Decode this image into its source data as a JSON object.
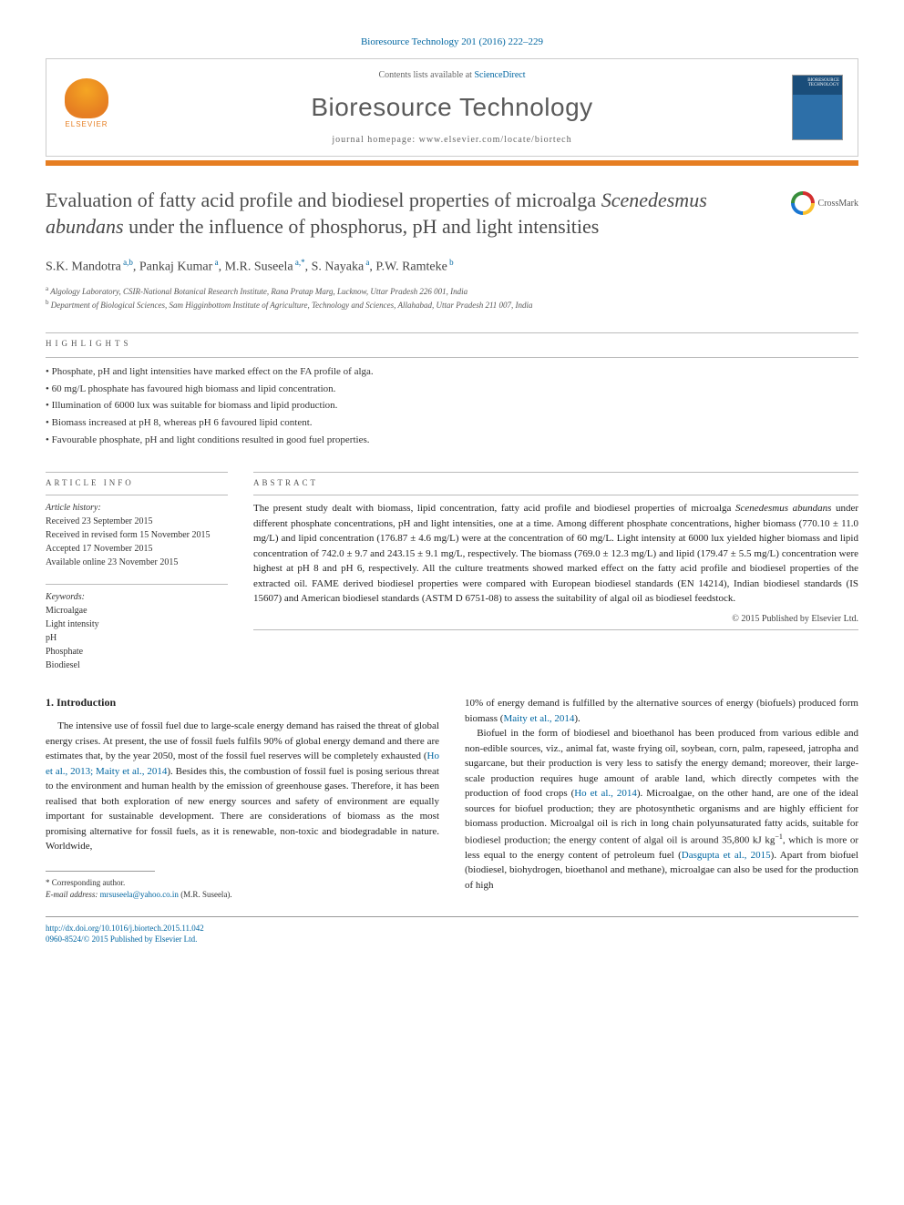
{
  "citation": "Bioresource Technology 201 (2016) 222–229",
  "header": {
    "contents_prefix": "Contents lists available at ",
    "contents_link": "ScienceDirect",
    "journal_name": "Bioresource Technology",
    "homepage_prefix": "journal homepage: ",
    "homepage_url": "www.elsevier.com/locate/biortech",
    "elsevier_label": "ELSEVIER",
    "cover_text": "BIORESOURCE TECHNOLOGY"
  },
  "title_parts": {
    "pre": "Evaluation of fatty acid profile and biodiesel properties of microalga ",
    "italic": "Scenedesmus abundans",
    "post": " under the influence of phosphorus, pH and light intensities"
  },
  "crossmark": "CrossMark",
  "authors_parts": [
    {
      "name": "S.K. Mandotra",
      "sup": "a,b"
    },
    {
      "name": ", Pankaj Kumar",
      "sup": "a"
    },
    {
      "name": ", M.R. Suseela",
      "sup": "a,*"
    },
    {
      "name": ", S. Nayaka",
      "sup": "a"
    },
    {
      "name": ", P.W. Ramteke",
      "sup": "b"
    }
  ],
  "affiliations": [
    {
      "sup": "a",
      "text": " Algology Laboratory, CSIR-National Botanical Research Institute, Rana Pratap Marg, Lucknow, Uttar Pradesh 226 001, India"
    },
    {
      "sup": "b",
      "text": " Department of Biological Sciences, Sam Higginbottom Institute of Agriculture, Technology and Sciences, Allahabad, Uttar Pradesh 211 007, India"
    }
  ],
  "highlights_label": "HIGHLIGHTS",
  "highlights": [
    "Phosphate, pH and light intensities have marked effect on the FA profile of alga.",
    "60 mg/L phosphate has favoured high biomass and lipid concentration.",
    "Illumination of 6000 lux was suitable for biomass and lipid production.",
    "Biomass increased at pH 8, whereas pH 6 favoured lipid content.",
    "Favourable phosphate, pH and light conditions resulted in good fuel properties."
  ],
  "article_info_label": "ARTICLE INFO",
  "history_label": "Article history:",
  "history": [
    "Received 23 September 2015",
    "Received in revised form 15 November 2015",
    "Accepted 17 November 2015",
    "Available online 23 November 2015"
  ],
  "keywords_label": "Keywords:",
  "keywords": [
    "Microalgae",
    "Light intensity",
    "pH",
    "Phosphate",
    "Biodiesel"
  ],
  "abstract_label": "ABSTRACT",
  "abstract_text_pre": "The present study dealt with biomass, lipid concentration, fatty acid profile and biodiesel properties of microalga ",
  "abstract_italic": "Scenedesmus abundans",
  "abstract_text_post": " under different phosphate concentrations, pH and light intensities, one at a time. Among different phosphate concentrations, higher biomass (770.10 ± 11.0 mg/L) and lipid concentration (176.87 ± 4.6 mg/L) were at the concentration of 60 mg/L. Light intensity at 6000 lux yielded higher biomass and lipid concentration of 742.0 ± 9.7 and 243.15 ± 9.1 mg/L, respectively. The biomass (769.0 ± 12.3 mg/L) and lipid (179.47 ± 5.5 mg/L) concentration were highest at pH 8 and pH 6, respectively. All the culture treatments showed marked effect on the fatty acid profile and biodiesel properties of the extracted oil. FAME derived biodiesel properties were compared with European biodiesel standards (EN 14214), Indian biodiesel standards (IS 15607) and American biodiesel standards (ASTM D 6751-08) to assess the suitability of algal oil as biodiesel feedstock.",
  "copyright": "© 2015 Published by Elsevier Ltd.",
  "intro_heading": "1. Introduction",
  "intro_p1_a": "The intensive use of fossil fuel due to large-scale energy demand has raised the threat of global energy crises. At present, the use of fossil fuels fulfils 90% of global energy demand and there are estimates that, by the year 2050, most of the fossil fuel reserves will be completely exhausted (",
  "intro_p1_cite1": "Ho et al., 2013; Maity et al., 2014",
  "intro_p1_b": "). Besides this, the combustion of fossil fuel is posing serious threat to the environment and human health by the emission of greenhouse gases. Therefore, it has been realised that both exploration of new energy sources and safety of environment are equally important for sustainable development. There are considerations of biomass as the most promising alternative for fossil fuels, as it is renewable, non-toxic and biodegradable in nature. Worldwide,",
  "intro_p2_a": "10% of energy demand is fulfilled by the alternative sources of energy (biofuels) produced form biomass (",
  "intro_p2_cite1": "Maity et al., 2014",
  "intro_p2_b": ").",
  "intro_p3_a": "Biofuel in the form of biodiesel and bioethanol has been produced from various edible and non-edible sources, viz., animal fat, waste frying oil, soybean, corn, palm, rapeseed, jatropha and sugarcane, but their production is very less to satisfy the energy demand; moreover, their large-scale production requires huge amount of arable land, which directly competes with the production of food crops (",
  "intro_p3_cite1": "Ho et al., 2014",
  "intro_p3_b": "). Microalgae, on the other hand, are one of the ideal sources for biofuel production; they are photosynthetic organisms and are highly efficient for biomass production. Microalgal oil is rich in long chain polyunsaturated fatty acids, suitable for biodiesel production; the energy content of algal oil is around 35,800 kJ kg",
  "intro_p3_sup": "−1",
  "intro_p3_c": ", which is more or less equal to the energy content of petroleum fuel (",
  "intro_p3_cite2": "Dasgupta et al., 2015",
  "intro_p3_d": "). Apart from biofuel (biodiesel, biohydrogen, bioethanol and methane), microalgae can also be used for the production of high",
  "footnote": {
    "corr": "* Corresponding author.",
    "email_label": "E-mail address: ",
    "email": "mrsuseela@yahoo.co.in",
    "email_owner": " (M.R. Suseela)."
  },
  "footer": {
    "doi": "http://dx.doi.org/10.1016/j.biortech.2015.11.042",
    "issn_line": "0960-8524/© 2015 Published by Elsevier Ltd."
  },
  "colors": {
    "link": "#0066a1",
    "orange": "#e67e22",
    "text": "#333333"
  }
}
